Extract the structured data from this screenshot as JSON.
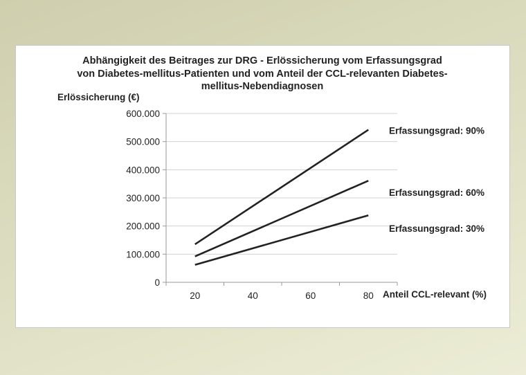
{
  "chart_data": {
    "type": "line",
    "title": [
      "Abhängigkeit des Beitrages zur DRG - Erlössicherung vom Erfassungsgrad",
      "von Diabetes-mellitus-Patienten und vom Anteil der CCL-relevanten Diabetes-",
      "mellitus-Nebendiagnosen"
    ],
    "ylabel": "Erlössicherung (€)",
    "xlabel": "Anteil CCL-relevant (%)",
    "categories": [
      "20",
      "40",
      "60",
      "80"
    ],
    "ylim": [
      0,
      600000
    ],
    "yticks": [
      "0",
      "100.000",
      "200.000",
      "300.000",
      "400.000",
      "500.000",
      "600.000"
    ],
    "grid": "horizontal",
    "series": [
      {
        "name": "Erfassungsgrad: 90%",
        "x": [
          20,
          80
        ],
        "values": [
          135000,
          542000
        ]
      },
      {
        "name": "Erfassungsgrad: 60%",
        "x": [
          20,
          80
        ],
        "values": [
          92000,
          361000
        ]
      },
      {
        "name": "Erfassungsgrad: 30%",
        "x": [
          20,
          80
        ],
        "values": [
          62000,
          238000
        ]
      }
    ],
    "line_color": "#222222",
    "grid_color": "#d0d0d0"
  }
}
